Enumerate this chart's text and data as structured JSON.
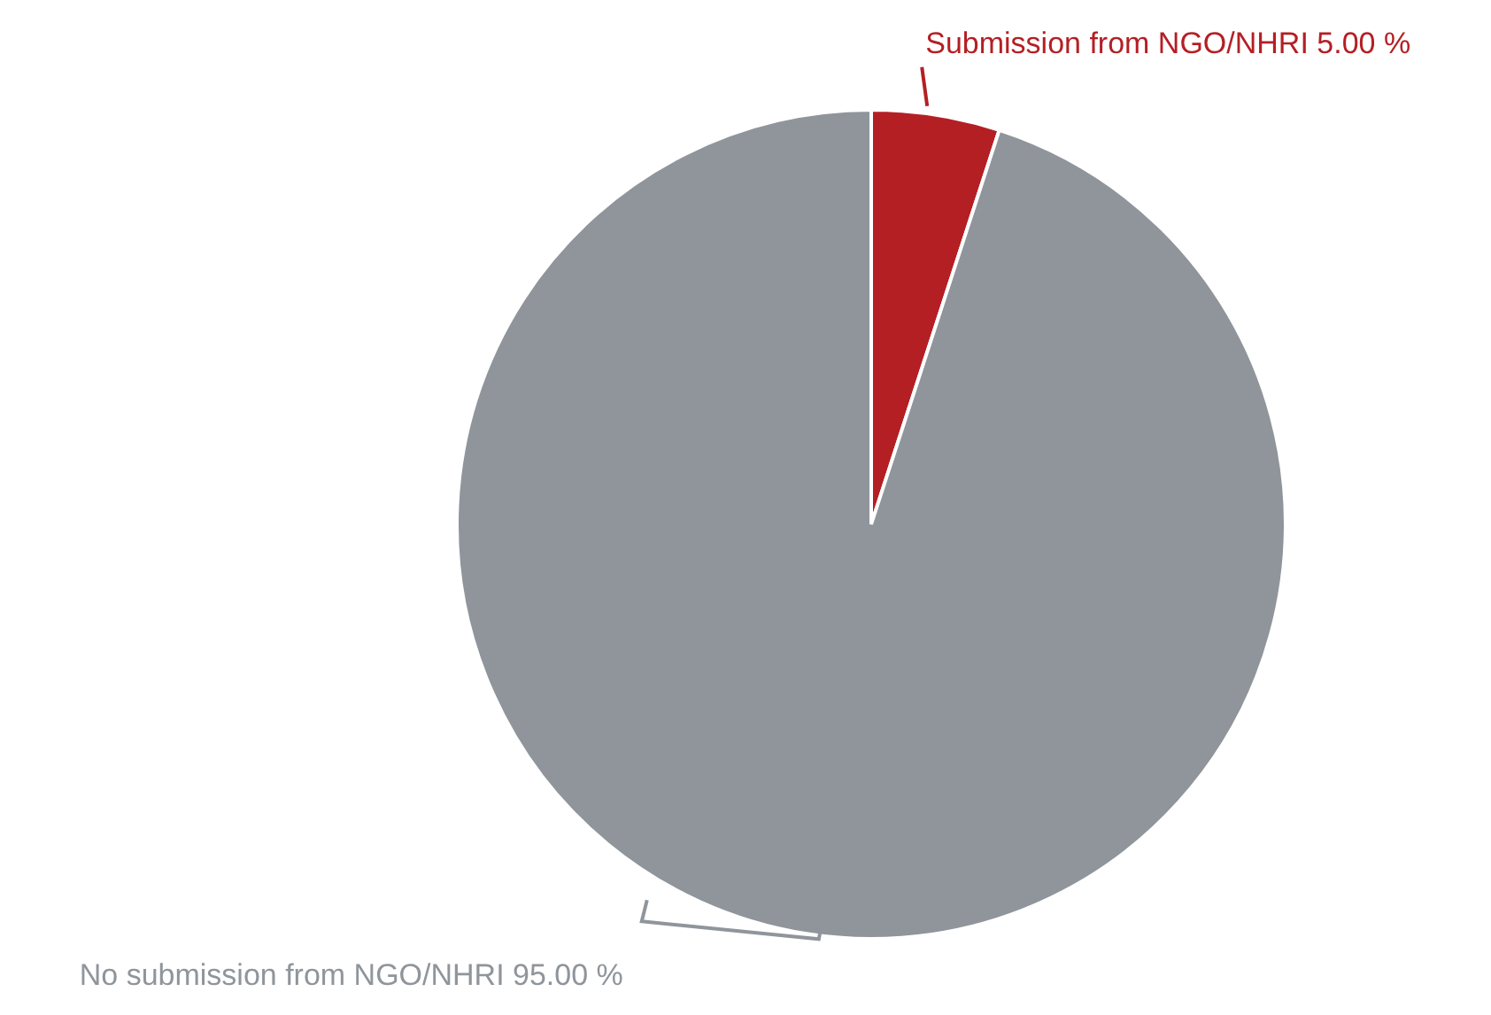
{
  "chart_data": {
    "type": "pie",
    "categories": [
      "Submission from NGO/NHRI",
      "No submission from NGO/NHRI"
    ],
    "values": [
      5,
      95
    ],
    "value_labels": [
      "5.00 %",
      "95.00 %"
    ],
    "colors": [
      "#b41f24",
      "#8f959b"
    ],
    "legend": false
  }
}
